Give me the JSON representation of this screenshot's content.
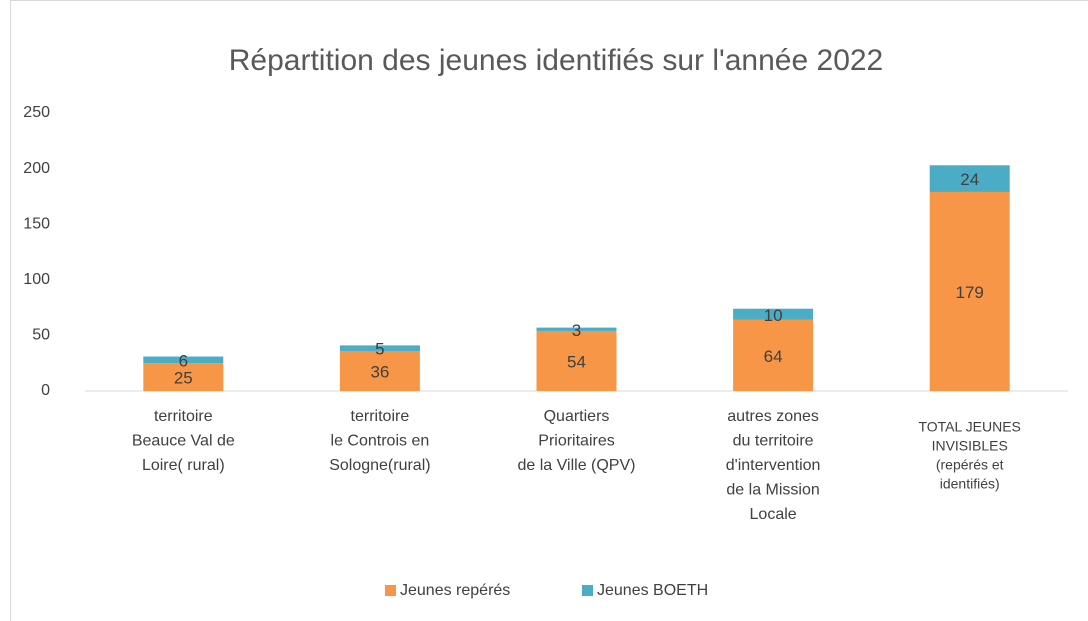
{
  "chart_data": {
    "type": "bar",
    "stacked": true,
    "title": "Répartition des jeunes identifiés sur l'année 2022",
    "categories": [
      [
        "territoire",
        "Beauce Val de",
        "Loire( rural)"
      ],
      [
        "territoire",
        "le Controis en",
        "Sologne(rural)"
      ],
      [
        "Quartiers",
        "Prioritaires",
        "de la Ville (QPV)"
      ],
      [
        "autres zones",
        "du territoire",
        "d'intervention",
        "de la Mission",
        "Locale"
      ],
      [
        "TOTAL JEUNES",
        "INVISIBLES",
        "(repérés et",
        "identifiés)"
      ]
    ],
    "series": [
      {
        "name": "Jeunes repérés",
        "color": "#f79646",
        "values": [
          25,
          36,
          54,
          64,
          179
        ]
      },
      {
        "name": "Jeunes BOETH",
        "color": "#4bacc6",
        "values": [
          6,
          5,
          3,
          10,
          24
        ]
      }
    ],
    "ylim": [
      0,
      250
    ],
    "yticks": [
      0,
      50,
      100,
      150,
      200,
      250
    ],
    "grid": false,
    "legend": "bottom"
  }
}
